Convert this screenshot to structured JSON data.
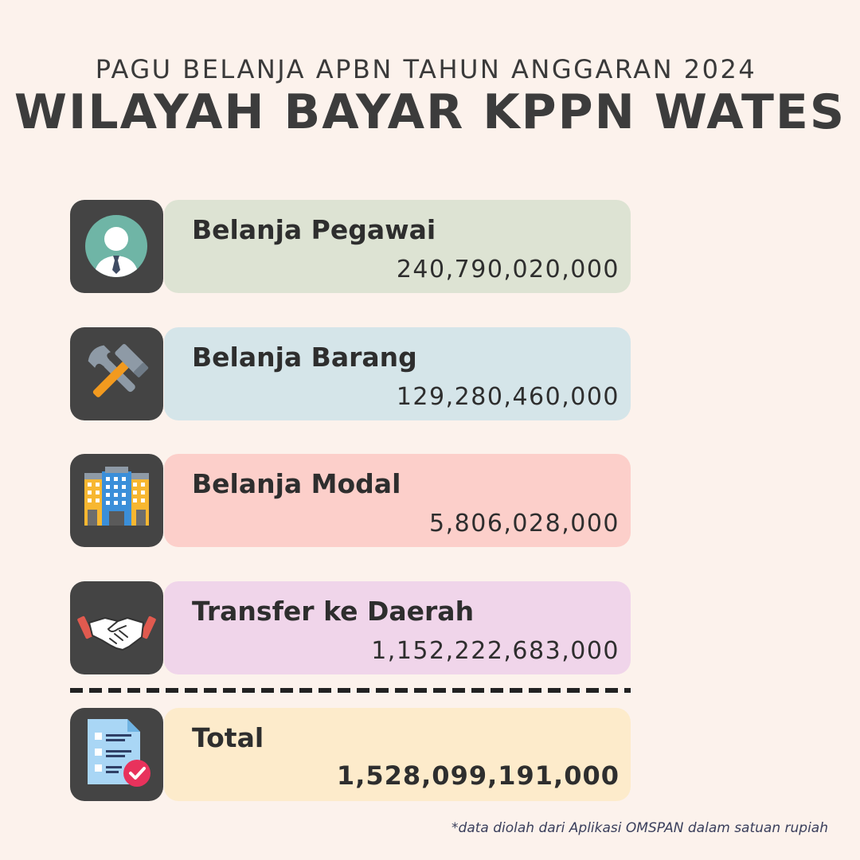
{
  "header": {
    "subtitle": "PAGU BELANJA APBN TAHUN ANGGARAN 2024",
    "title": "WILAYAH BAYAR KPPN WATES"
  },
  "items": [
    {
      "label": "Belanja Pegawai",
      "value": "240,790,020,000",
      "icon": "employee-icon",
      "color": "#dde3d3"
    },
    {
      "label": "Belanja Barang",
      "value": "129,280,460,000",
      "icon": "tools-icon",
      "color": "#d5e5e9"
    },
    {
      "label": "Belanja Modal",
      "value": "5,806,028,000",
      "icon": "building-icon",
      "color": "#fccfca"
    },
    {
      "label": "Transfer ke Daerah",
      "value": "1,152,222,683,000",
      "icon": "handshake-icon",
      "color": "#f0d5ea"
    }
  ],
  "total": {
    "label": "Total",
    "value": "1,528,099,191,000",
    "icon": "checklist-document-icon",
    "color": "#fdebcb"
  },
  "footnote": "*data diolah dari Aplikasi OMSPAN dalam satuan rupiah"
}
